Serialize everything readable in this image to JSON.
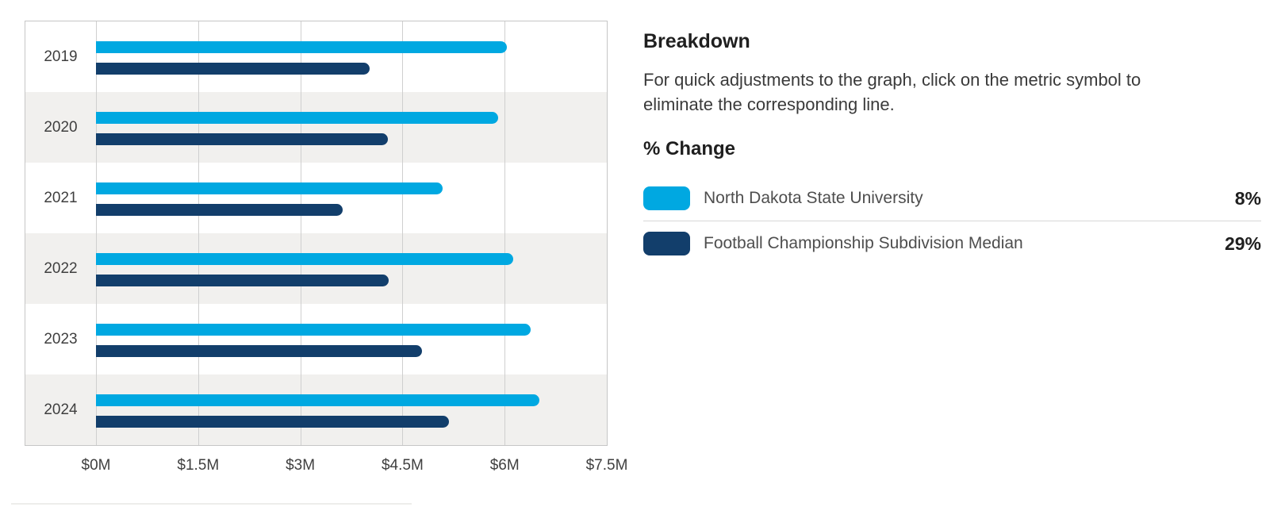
{
  "chart_data": {
    "type": "bar",
    "orientation": "horizontal",
    "categories": [
      "2019",
      "2020",
      "2021",
      "2022",
      "2023",
      "2024"
    ],
    "series": [
      {
        "name": "North Dakota State University",
        "slug": "north-dakota-state-university",
        "color": "#00a8e1",
        "values": [
          6.03,
          5.9,
          5.09,
          6.13,
          6.38,
          6.51
        ]
      },
      {
        "name": "Football Championship Subdivision Median",
        "slug": "fcs-median",
        "color": "#123e6b",
        "values": [
          4.02,
          4.28,
          3.62,
          4.3,
          4.79,
          5.18
        ]
      }
    ],
    "xlim": [
      0,
      7.5
    ],
    "x_tick_values": [
      0,
      1.5,
      3,
      4.5,
      6,
      7.5
    ],
    "x_tick_labels": [
      "$0M",
      "$1.5M",
      "$3M",
      "$4.5M",
      "$6M",
      "$7.5M"
    ],
    "grid": "vertical",
    "row_stripes": true,
    "legend_position": "right-panel"
  },
  "panel": {
    "title": "Breakdown",
    "description": "For quick adjustments to the graph, click on the metric symbol to eliminate the corresponding line.",
    "subtitle": "% Change",
    "legend": [
      {
        "label": "North Dakota State University",
        "pct": "8%",
        "color": "#00a8e1"
      },
      {
        "label": "Football Championship Subdivision Median",
        "pct": "29%",
        "color": "#123e6b"
      }
    ]
  },
  "colors": {
    "series_light_blue": "#00a8e1",
    "series_navy": "#123e6b",
    "row_stripe": "#f1f0ee",
    "gridline": "#cfcfcf",
    "chart_border": "#c6c6c6",
    "text_dark": "#1f1f1f",
    "text_gray": "#4e4e4e"
  }
}
